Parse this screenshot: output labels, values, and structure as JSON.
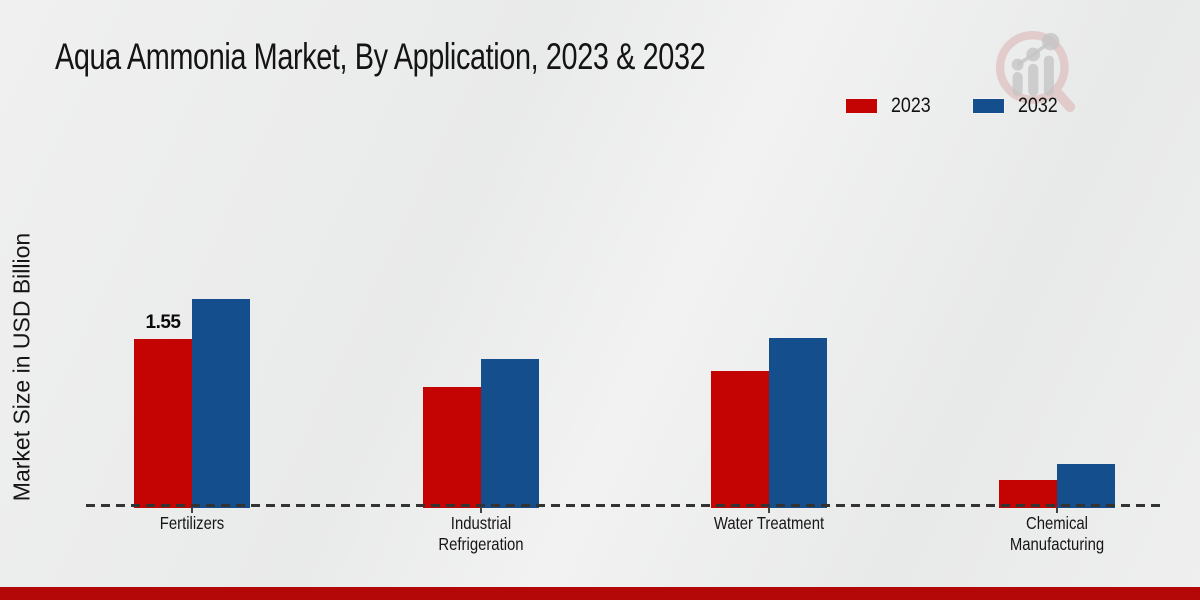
{
  "title": "Aqua Ammonia Market, By Application, 2023 & 2032",
  "y_axis_label": "Market Size in USD Billion",
  "legend": {
    "items": [
      {
        "label": "2023",
        "color": "#c40303"
      },
      {
        "label": "2032",
        "color": "#154e8d"
      }
    ]
  },
  "logo_name": "market-research-watermark",
  "colors": {
    "series_2023": "#c40303",
    "series_2032": "#154e8d",
    "footer": "#b40808",
    "baseline": "#333333",
    "background": "#ededed"
  },
  "chart_data": {
    "type": "bar",
    "title": "Aqua Ammonia Market, By Application, 2023 & 2032",
    "categories": [
      "Fertilizers",
      "Industrial Refrigeration",
      "Water Treatment",
      "Chemical Manufacturing"
    ],
    "series": [
      {
        "name": "2023",
        "color": "#c40303",
        "values": [
          1.55,
          1.1,
          1.25,
          0.24
        ]
      },
      {
        "name": "2032",
        "color": "#154e8d",
        "values": [
          1.92,
          1.36,
          1.56,
          0.39
        ]
      }
    ],
    "value_labels": [
      {
        "series": "2023",
        "category_index": 0,
        "text": "1.55"
      }
    ],
    "xlabel": "",
    "ylabel": "Market Size in USD Billion",
    "ylim": [
      0,
      2.5
    ],
    "grid": false,
    "legend_position": "top-right",
    "zero_line_style": "dashed",
    "y_ticks_shown": false
  }
}
